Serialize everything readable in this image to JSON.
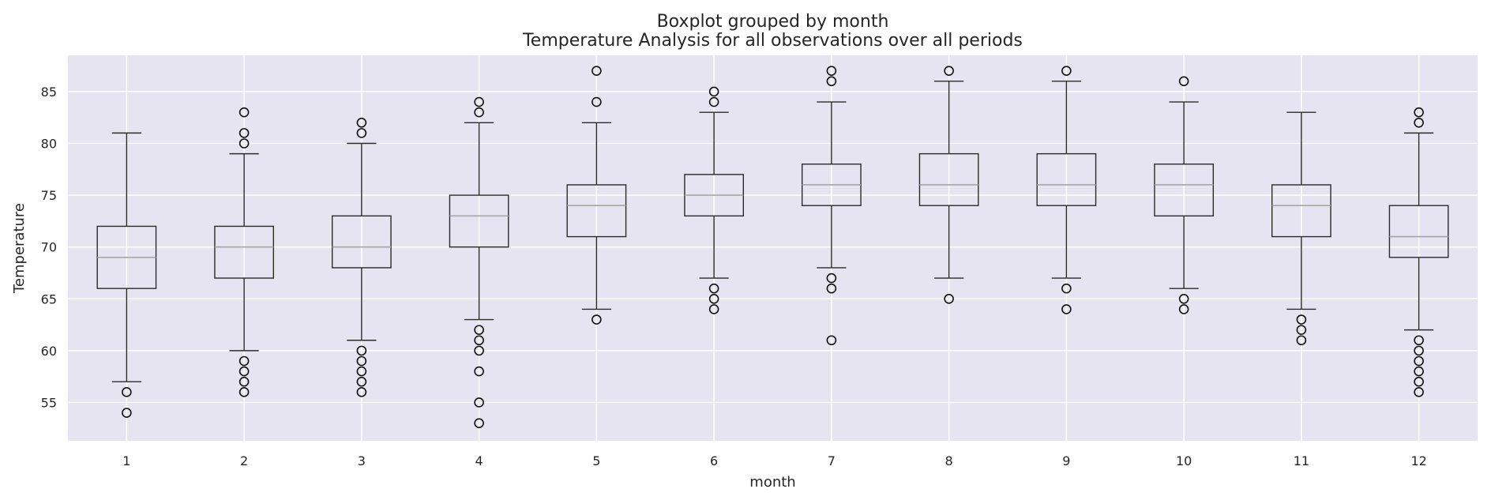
{
  "chart_data": {
    "type": "box",
    "suptitle": "Boxplot grouped by month",
    "title": "Temperature Analysis for all observations over all periods",
    "xlabel": "month",
    "ylabel": "Temperature",
    "ylim": [
      51.3,
      88.5
    ],
    "yticks": [
      55,
      60,
      65,
      70,
      75,
      80,
      85
    ],
    "grid": true,
    "colors": {
      "background": "#e5e4f0",
      "grid": "#ffffff",
      "box": "#2b2b2b",
      "median": "#a6a6a6",
      "text": "#262626"
    },
    "categories": [
      "1",
      "2",
      "3",
      "4",
      "5",
      "6",
      "7",
      "8",
      "9",
      "10",
      "11",
      "12"
    ],
    "boxes": [
      {
        "month": "1",
        "whisker_low": 57,
        "q1": 66,
        "median": 69,
        "q3": 72,
        "whisker_high": 81,
        "outliers": [
          56,
          54
        ]
      },
      {
        "month": "2",
        "whisker_low": 60,
        "q1": 67,
        "median": 70,
        "q3": 72,
        "whisker_high": 79,
        "outliers": [
          83,
          81,
          80,
          59,
          58,
          57,
          56
        ]
      },
      {
        "month": "3",
        "whisker_low": 61,
        "q1": 68,
        "median": 70,
        "q3": 73,
        "whisker_high": 80,
        "outliers": [
          82,
          81,
          60,
          59,
          58,
          57,
          56
        ]
      },
      {
        "month": "4",
        "whisker_low": 63,
        "q1": 70,
        "median": 73,
        "q3": 75,
        "whisker_high": 82,
        "outliers": [
          84,
          83,
          62,
          61,
          60,
          58,
          55,
          53
        ]
      },
      {
        "month": "5",
        "whisker_low": 64,
        "q1": 71,
        "median": 74,
        "q3": 76,
        "whisker_high": 82,
        "outliers": [
          87,
          84,
          63
        ]
      },
      {
        "month": "6",
        "whisker_low": 67,
        "q1": 73,
        "median": 75,
        "q3": 77,
        "whisker_high": 83,
        "outliers": [
          85,
          84,
          66,
          65,
          64
        ]
      },
      {
        "month": "7",
        "whisker_low": 68,
        "q1": 74,
        "median": 76,
        "q3": 78,
        "whisker_high": 84,
        "outliers": [
          87,
          86,
          67,
          66,
          61
        ]
      },
      {
        "month": "8",
        "whisker_low": 67,
        "q1": 74,
        "median": 76,
        "q3": 79,
        "whisker_high": 86,
        "outliers": [
          87,
          65
        ]
      },
      {
        "month": "9",
        "whisker_low": 67,
        "q1": 74,
        "median": 76,
        "q3": 79,
        "whisker_high": 86,
        "outliers": [
          87,
          66,
          64
        ]
      },
      {
        "month": "10",
        "whisker_low": 66,
        "q1": 73,
        "median": 76,
        "q3": 78,
        "whisker_high": 84,
        "outliers": [
          86,
          65,
          64
        ]
      },
      {
        "month": "11",
        "whisker_low": 64,
        "q1": 71,
        "median": 74,
        "q3": 76,
        "whisker_high": 83,
        "outliers": [
          63,
          62,
          61
        ]
      },
      {
        "month": "12",
        "whisker_low": 62,
        "q1": 69,
        "median": 71,
        "q3": 74,
        "whisker_high": 81,
        "outliers": [
          83,
          82,
          61,
          60,
          59,
          58,
          57,
          56
        ]
      }
    ]
  }
}
